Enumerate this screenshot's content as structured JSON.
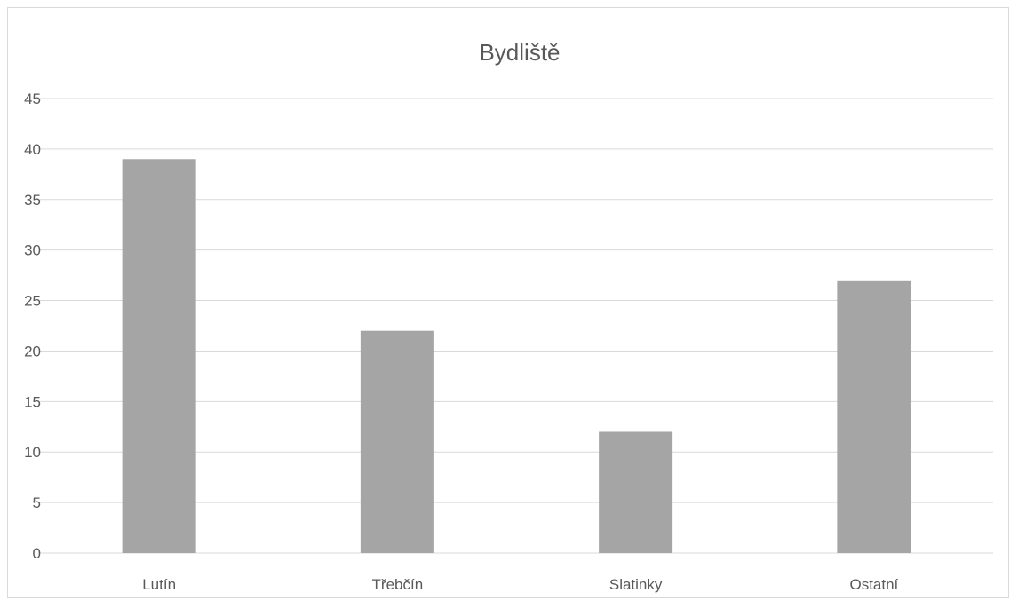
{
  "chart_data": {
    "type": "bar",
    "title": "Bydliště",
    "categories": [
      "Lutín",
      "Třebčín",
      "Slatinky",
      "Ostatní"
    ],
    "values": [
      39,
      22,
      12,
      27
    ],
    "xlabel": "",
    "ylabel": "",
    "ylim": [
      0,
      45
    ],
    "yticks": [
      0,
      5,
      10,
      15,
      20,
      25,
      30,
      35,
      40,
      45
    ],
    "grid": true,
    "legend": "none",
    "bar_color": "#a5a5a5",
    "grid_color": "#d9d9d9"
  }
}
